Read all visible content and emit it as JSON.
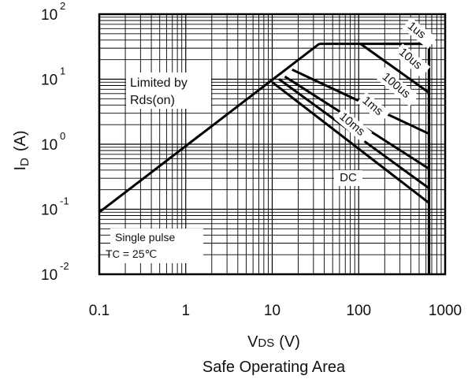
{
  "chart_data": {
    "type": "line",
    "title": "Safe Operating Area",
    "xlabel": {
      "main": "V",
      "sub": "DS",
      "unit": "(V)"
    },
    "ylabel": {
      "main": "I",
      "sub": "D",
      "unit": "(A)"
    },
    "x_scale": "log",
    "y_scale": "log",
    "xlim": [
      0.1,
      1000
    ],
    "ylim": [
      0.01,
      100
    ],
    "grid": true,
    "x_ticks": [
      "0.1",
      "1",
      "10",
      "100",
      "1000"
    ],
    "y_ticks": [
      {
        "base": "10",
        "exp": "-2"
      },
      {
        "base": "10",
        "exp": "-1"
      },
      {
        "base": "10",
        "exp": "0"
      },
      {
        "base": "10",
        "exp": "1"
      },
      {
        "base": "10",
        "exp": "2"
      }
    ],
    "boundary": {
      "rds_on_limit": [
        [
          0.1,
          0.09
        ],
        [
          35,
          35
        ]
      ],
      "current_limit": [
        [
          35,
          35
        ],
        [
          650,
          35
        ]
      ],
      "voltage_limit": [
        [
          650,
          35
        ],
        [
          650,
          0.01
        ]
      ]
    },
    "series": [
      {
        "name": "1us",
        "values": [
          [
            190,
            35
          ],
          [
            650,
            35
          ]
        ]
      },
      {
        "name": "10us",
        "values": [
          [
            105,
            35
          ],
          [
            650,
            6.2
          ]
        ]
      },
      {
        "name": "100us",
        "values": [
          [
            17,
            14
          ],
          [
            650,
            1.45
          ]
        ]
      },
      {
        "name": "1ms",
        "values": [
          [
            14,
            11
          ],
          [
            650,
            0.42
          ]
        ]
      },
      {
        "name": "10ms",
        "values": [
          [
            12,
            10
          ],
          [
            650,
            0.21
          ]
        ]
      },
      {
        "name": "DC",
        "values": [
          [
            10,
            9
          ],
          [
            650,
            0.125
          ]
        ]
      }
    ],
    "annotations": {
      "limited_line1": "Limited by",
      "limited_line2": "Rds(on)",
      "single_pulse": "Single pulse",
      "tc_main": "T",
      "tc_sub": "C",
      "tc_rest": " = 25℃"
    }
  }
}
